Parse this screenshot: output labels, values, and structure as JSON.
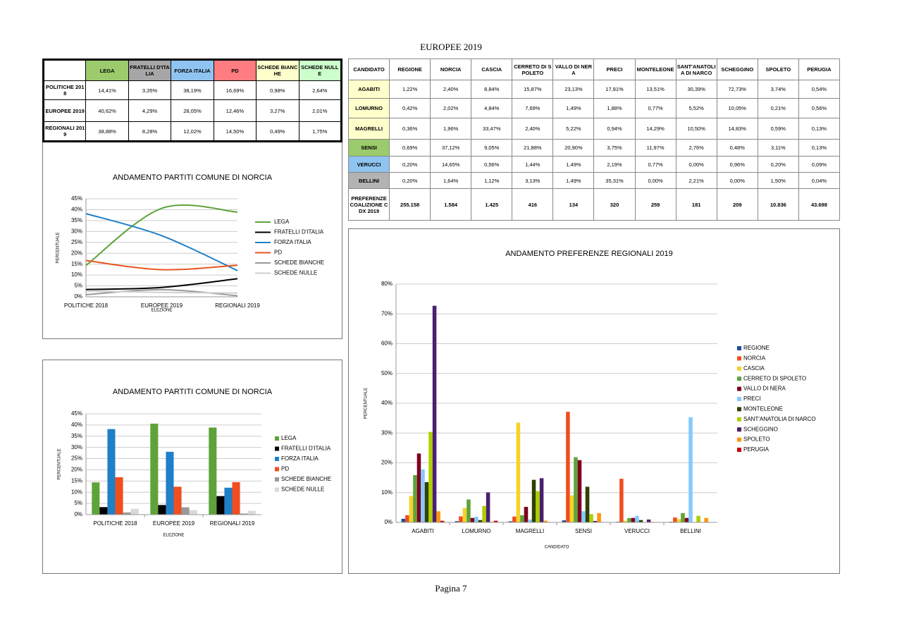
{
  "header": {
    "title": "EUROPEE 2019"
  },
  "footer": {
    "page": "Pagina 7"
  },
  "party_table": {
    "columns": [
      "LEGA",
      "FRATELLI D'ITALIA",
      "FORZA ITALIA",
      "PD",
      "SCHEDE BIANCHE",
      "SCHEDE NULLE"
    ],
    "header_colors": [
      "#9bcb6c",
      "#a6a6a6",
      "#8fc4f0",
      "#ff7c80",
      "#ffffcc",
      "#ccffcc"
    ],
    "rows": [
      {
        "label": "POLITICHE 2018",
        "cells": [
          "14,41%",
          "3,35%",
          "38,19%",
          "16,69%",
          "0,98%",
          "2,64%"
        ]
      },
      {
        "label": "EUROPEE 2019",
        "cells": [
          "40,62%",
          "4,29%",
          "28,05%",
          "12,46%",
          "3,27%",
          "2,01%"
        ]
      },
      {
        "label": "REGIONALI 2019",
        "cells": [
          "38,88%",
          "8,28%",
          "12,02%",
          "14,50%",
          "0,49%",
          "1,75%"
        ]
      }
    ]
  },
  "candidate_table": {
    "columns": [
      "CANDIDATO",
      "REGIONE",
      "NORCIA",
      "CASCIA",
      "CERRETO DI SPOLETO",
      "VALLO DI NERA",
      "PRECI",
      "MONTELEONE",
      "SANT'ANATOLIA DI NARCO",
      "SCHEGGINO",
      "SPOLETO",
      "PERUGIA"
    ],
    "rows": [
      {
        "label": "AGABITI",
        "color": "#ffffcc",
        "cells": [
          "1,22%",
          "2,40%",
          "8,84%",
          "15,87%",
          "23,13%",
          "17,81%",
          "13,51%",
          "30,39%",
          "72,73%",
          "3,74%",
          "0,54%"
        ]
      },
      {
        "label": "LOMURNO",
        "color": "#ffffcc",
        "cells": [
          "0,42%",
          "2,02%",
          "4,84%",
          "7,69%",
          "1,49%",
          "1,88%",
          "0,77%",
          "5,52%",
          "10,05%",
          "0,21%",
          "0,56%"
        ]
      },
      {
        "label": "MAGRELLI",
        "color": "#ffffcc",
        "cells": [
          "0,36%",
          "1,96%",
          "33,47%",
          "2,40%",
          "5,22%",
          "0,94%",
          "14,29%",
          "10,50%",
          "14,83%",
          "0,59%",
          "0,13%"
        ]
      },
      {
        "label": "SENSI",
        "color": "#9bcb6c",
        "cells": [
          "0,69%",
          "37,12%",
          "9,05%",
          "21,88%",
          "20,90%",
          "3,75%",
          "11,97%",
          "2,76%",
          "0,48%",
          "3,11%",
          "0,13%"
        ]
      },
      {
        "label": "VERUCCI",
        "color": "#8fc4f0",
        "cells": [
          "0,20%",
          "14,65%",
          "0,56%",
          "1,44%",
          "1,49%",
          "2,19%",
          "0,77%",
          "0,00%",
          "0,96%",
          "0,20%",
          "0,09%"
        ]
      },
      {
        "label": "BELLINI",
        "color": "#b3b3b3",
        "cells": [
          "0,20%",
          "1,64%",
          "1,12%",
          "3,13%",
          "1,49%",
          "35,31%",
          "0,00%",
          "2,21%",
          "0,00%",
          "1,50%",
          "0,04%"
        ]
      },
      {
        "label": "PREFERENZE COALIZIONE CDX 2019",
        "cells": [
          "255.158",
          "1.584",
          "1.425",
          "416",
          "134",
          "320",
          "259",
          "181",
          "209",
          "10.836",
          "43.698"
        ]
      }
    ]
  },
  "chart_data": [
    {
      "type": "line",
      "title": "ANDAMENTO PARTITI COMUNE DI NORCIA",
      "x_label": "ELEZIONE",
      "y_label": "PERCENTUALE",
      "categories": [
        "POLITICHE 2018",
        "EUROPEE 2019",
        "REGIONALI 2019"
      ],
      "ylim": [
        0,
        45
      ],
      "yticks": [
        {
          "value": 0,
          "label": "0%"
        },
        {
          "value": 5,
          "label": "5%"
        },
        {
          "value": 10,
          "label": "10%"
        },
        {
          "value": 15,
          "label": "15%"
        },
        {
          "value": 20,
          "label": "20%"
        },
        {
          "value": 25,
          "label": "25%"
        },
        {
          "value": 30,
          "label": "30%"
        },
        {
          "value": 35,
          "label": "35%"
        },
        {
          "value": 40,
          "label": "40%"
        },
        {
          "value": 45,
          "label": "45%"
        }
      ],
      "grid": true,
      "series": [
        {
          "name": "LEGA",
          "color": "#5ea33a",
          "values": [
            14.41,
            40.62,
            38.88
          ]
        },
        {
          "name": "FRATELLI D'ITALIA",
          "color": "#000000",
          "values": [
            3.35,
            4.29,
            8.28
          ]
        },
        {
          "name": "FORZA ITALIA",
          "color": "#1f7fc7",
          "values": [
            38.19,
            28.05,
            12.02
          ]
        },
        {
          "name": "PD",
          "color": "#e9541e",
          "values": [
            16.69,
            12.46,
            14.5
          ]
        },
        {
          "name": "SCHEDE BIANCHE",
          "color": "#999999",
          "values": [
            0.98,
            3.27,
            0.49
          ]
        },
        {
          "name": "SCHEDE NULLE",
          "color": "#d0d0d0",
          "values": [
            2.64,
            2.01,
            1.75
          ]
        }
      ]
    },
    {
      "type": "bar",
      "title": "ANDAMENTO PARTITI COMUNE DI NORCIA",
      "x_label": "ELEZIONE",
      "y_label": "PERCENTUALE",
      "categories": [
        "POLITICHE 2018",
        "EUROPEE 2019",
        "REGIONALI 2019"
      ],
      "ylim": [
        0,
        45
      ],
      "yticks": [
        {
          "value": 0,
          "label": "0%"
        },
        {
          "value": 5,
          "label": "5%"
        },
        {
          "value": 10,
          "label": "10%"
        },
        {
          "value": 15,
          "label": "15%"
        },
        {
          "value": 20,
          "label": "20%"
        },
        {
          "value": 25,
          "label": "25%"
        },
        {
          "value": 30,
          "label": "30%"
        },
        {
          "value": 35,
          "label": "35%"
        },
        {
          "value": 40,
          "label": "40%"
        },
        {
          "value": 45,
          "label": "45%"
        }
      ],
      "grid": true,
      "series": [
        {
          "name": "LEGA",
          "color": "#5ea33a",
          "values": [
            14.41,
            40.62,
            38.88
          ]
        },
        {
          "name": "FRATELLI D'ITALIA",
          "color": "#000000",
          "values": [
            3.35,
            4.29,
            8.28
          ]
        },
        {
          "name": "FORZA ITALIA",
          "color": "#1f7fc7",
          "values": [
            38.19,
            28.05,
            12.02
          ]
        },
        {
          "name": "PD",
          "color": "#f04e1e",
          "values": [
            16.69,
            12.46,
            14.5
          ]
        },
        {
          "name": "SCHEDE BIANCHE",
          "color": "#999999",
          "values": [
            0.98,
            3.27,
            0.49
          ]
        },
        {
          "name": "SCHEDE NULLE",
          "color": "#d9d9d9",
          "values": [
            2.64,
            2.01,
            1.75
          ]
        }
      ]
    },
    {
      "type": "bar",
      "title": "ANDAMENTO PREFERENZE REGIONALI 2019",
      "x_label": "CANDIDATO",
      "y_label": "PERCENTUALE",
      "categories": [
        "AGABITI",
        "LOMURNO",
        "MAGRELLI",
        "SENSI",
        "VERUCCI",
        "BELLINI"
      ],
      "ylim": [
        0,
        80
      ],
      "yticks": [
        {
          "value": 0,
          "label": "0%"
        },
        {
          "value": 10,
          "label": "10%"
        },
        {
          "value": 20,
          "label": "20%"
        },
        {
          "value": 30,
          "label": "30%"
        },
        {
          "value": 40,
          "label": "40%"
        },
        {
          "value": 50,
          "label": "50%"
        },
        {
          "value": 60,
          "label": "60%"
        },
        {
          "value": 70,
          "label": "70%"
        },
        {
          "value": 80,
          "label": "80%"
        }
      ],
      "grid": true,
      "series": [
        {
          "name": "REGIONE",
          "color": "#1f4e9a",
          "values": [
            1.22,
            0.42,
            0.36,
            0.69,
            0.2,
            0.2
          ]
        },
        {
          "name": "NORCIA",
          "color": "#f04e1e",
          "values": [
            2.4,
            2.02,
            1.96,
            37.12,
            14.65,
            1.64
          ]
        },
        {
          "name": "CASCIA",
          "color": "#f5d328",
          "values": [
            8.84,
            4.84,
            33.47,
            9.05,
            0.56,
            1.12
          ]
        },
        {
          "name": "CERRETO DI SPOLETO",
          "color": "#5ea33a",
          "values": [
            15.87,
            7.69,
            2.4,
            21.88,
            1.44,
            3.13
          ]
        },
        {
          "name": "VALLO DI NERA",
          "color": "#7e0021",
          "values": [
            23.13,
            1.49,
            5.22,
            20.9,
            1.49,
            1.49
          ]
        },
        {
          "name": "PRECI",
          "color": "#83caff",
          "values": [
            17.81,
            1.88,
            0.94,
            3.75,
            2.19,
            35.31
          ]
        },
        {
          "name": "MONTELEONE",
          "color": "#314004",
          "values": [
            13.51,
            0.77,
            14.29,
            11.97,
            0.77,
            0.0
          ]
        },
        {
          "name": "SANT'ANATOLIA DI NARCO",
          "color": "#aecf00",
          "values": [
            30.39,
            5.52,
            10.5,
            2.76,
            0.0,
            2.21
          ]
        },
        {
          "name": "SCHEGGINO",
          "color": "#4b1f6f",
          "values": [
            72.73,
            10.05,
            14.83,
            0.48,
            0.96,
            0.0
          ]
        },
        {
          "name": "SPOLETO",
          "color": "#ff950e",
          "values": [
            3.74,
            0.21,
            0.59,
            3.11,
            0.2,
            1.5
          ]
        },
        {
          "name": "PERUGIA",
          "color": "#c5000b",
          "values": [
            0.54,
            0.56,
            0.13,
            0.13,
            0.09,
            0.04
          ]
        }
      ]
    }
  ]
}
